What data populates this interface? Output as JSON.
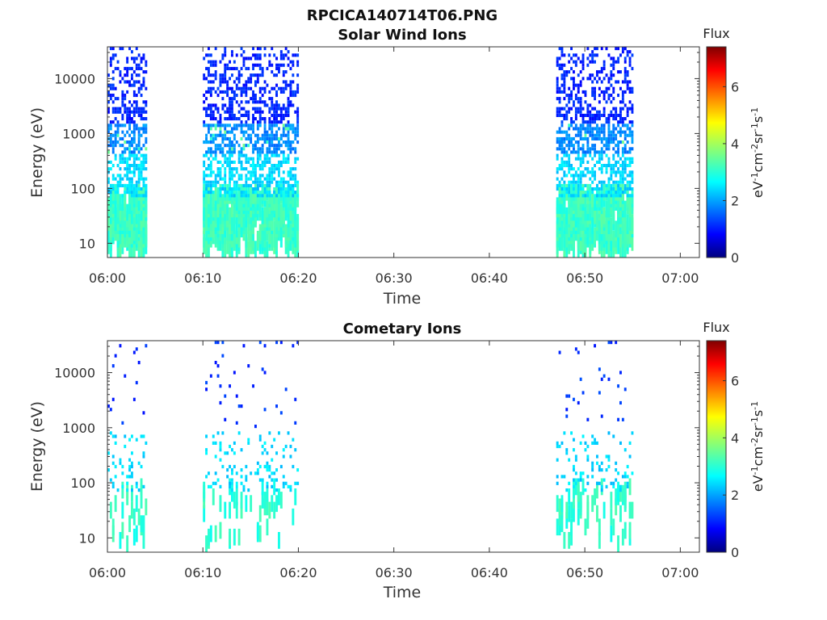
{
  "figure": {
    "title": "RPCICA140714T06.PNG"
  },
  "chart_data": [
    {
      "type": "heatmap",
      "title": "Solar Wind Ions",
      "xlabel": "Time",
      "ylabel": "Energy (eV)",
      "x_ticks": [
        "06:00",
        "06:10",
        "06:20",
        "06:30",
        "06:40",
        "06:50",
        "07:00"
      ],
      "xlim_minutes": [
        0,
        62
      ],
      "y_ticks": [
        10,
        100,
        1000,
        10000
      ],
      "y_tick_labels": [
        "10",
        "100",
        "1000",
        "10000"
      ],
      "ylim": [
        5.5,
        38000
      ],
      "y_scale": "log",
      "colorbar": {
        "label": "Flux",
        "unit_label": "eV-1cm-2sr-1s-1",
        "range": [
          0,
          7.4
        ],
        "ticks": [
          "0",
          "2",
          "4",
          "6"
        ]
      },
      "active_intervals": [
        {
          "start": "06:00",
          "end": "06:04"
        },
        {
          "start": "06:10",
          "end": "06:20"
        },
        {
          "start": "06:47",
          "end": "06:55"
        }
      ],
      "density": "high",
      "grid": false
    },
    {
      "type": "heatmap",
      "title": "Cometary Ions",
      "xlabel": "Time",
      "ylabel": "Energy (eV)",
      "x_ticks": [
        "06:00",
        "06:10",
        "06:20",
        "06:30",
        "06:40",
        "06:50",
        "07:00"
      ],
      "xlim_minutes": [
        0,
        62
      ],
      "y_ticks": [
        10,
        100,
        1000,
        10000
      ],
      "y_tick_labels": [
        "10",
        "100",
        "1000",
        "10000"
      ],
      "ylim": [
        5.5,
        38000
      ],
      "y_scale": "log",
      "colorbar": {
        "label": "Flux",
        "unit_label": "eV-1cm-2sr-1s-1",
        "range": [
          0,
          7.4
        ],
        "ticks": [
          "0",
          "2",
          "4",
          "6"
        ]
      },
      "active_intervals": [
        {
          "start": "06:00",
          "end": "06:04"
        },
        {
          "start": "06:10",
          "end": "06:20"
        },
        {
          "start": "06:47",
          "end": "06:55"
        }
      ],
      "density": "sparse",
      "grid": false
    }
  ]
}
